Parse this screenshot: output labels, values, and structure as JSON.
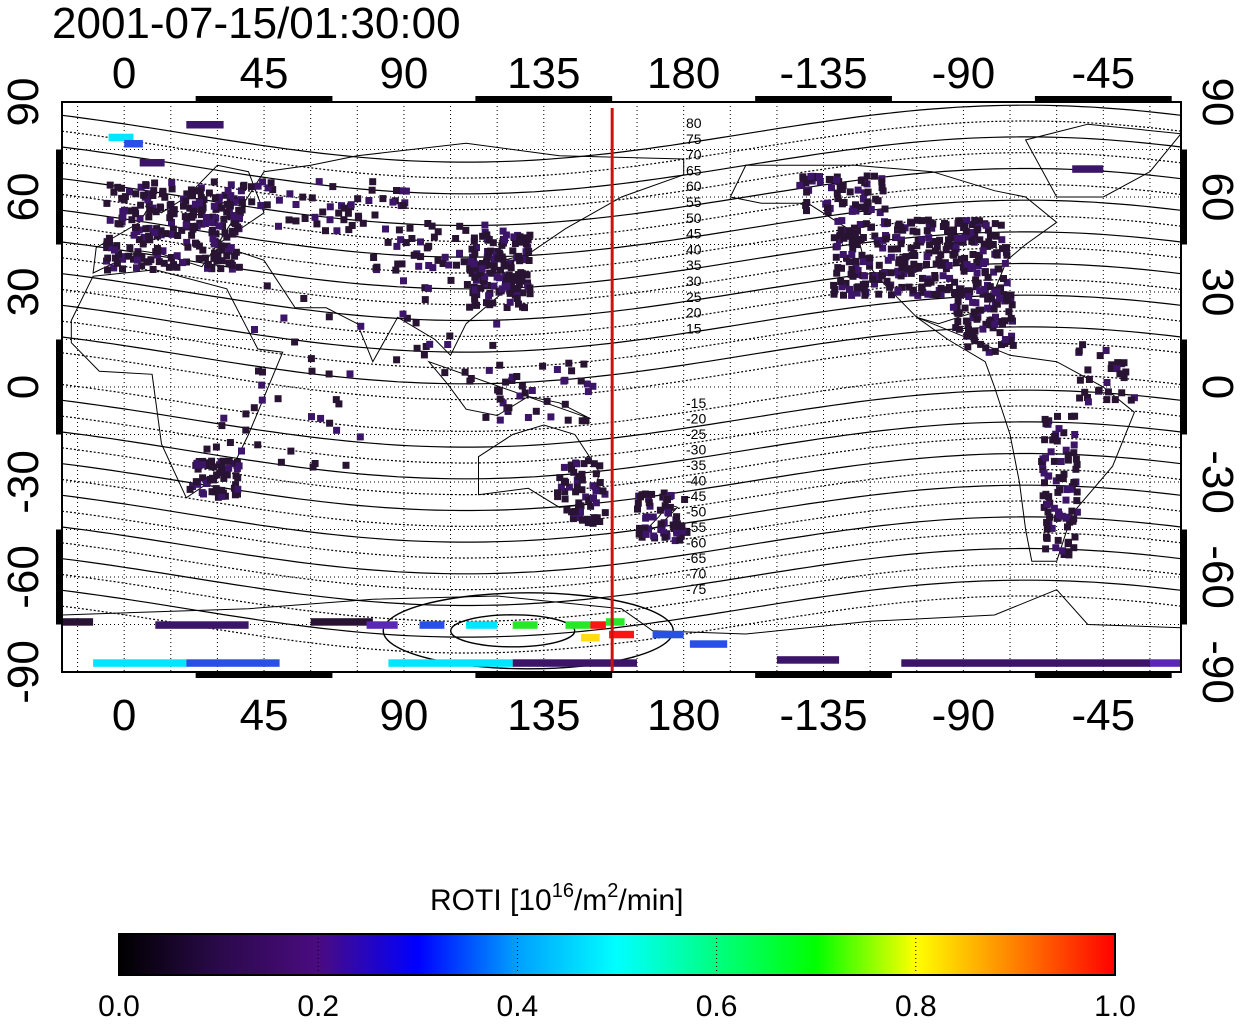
{
  "timestamp": "2001-07-15/01:30:00",
  "map": {
    "lon_ticks": [
      "0",
      "45",
      "90",
      "135",
      "180",
      "-135",
      "-90",
      "-45"
    ],
    "lat_ticks": [
      "90",
      "60",
      "30",
      "0",
      "-30",
      "-60",
      "-90"
    ],
    "contour_labels_north": [
      "80",
      "75",
      "70",
      "65",
      "60",
      "55",
      "50",
      "45",
      "40",
      "35",
      "30",
      "25",
      "20",
      "15"
    ],
    "contour_labels_south": [
      "-15",
      "-20",
      "-25",
      "-30",
      "-35",
      "-40",
      "-45",
      "-50",
      "-55",
      "-60",
      "-65",
      "-70",
      "-75"
    ],
    "marker_longitude": 157,
    "marker_color": "#d01010",
    "lon_range": [
      -20,
      340
    ],
    "lat_range": [
      -90,
      90
    ]
  },
  "colorbar": {
    "title_prefix": "ROTI  [10",
    "title_sup1": "16",
    "title_mid": "/m",
    "title_sup2": "2",
    "title_suffix": "/min]",
    "tick_labels": [
      "0.0",
      "0.2",
      "0.4",
      "0.6",
      "0.8",
      "1.0"
    ],
    "range": [
      0.0,
      1.0
    ],
    "stops": [
      "#000000",
      "#2a0a4a",
      "#4a0b80",
      "#0000ff",
      "#00a0ff",
      "#00ffff",
      "#00ff80",
      "#00ff00",
      "#ffff00",
      "#ff8000",
      "#ff0000"
    ]
  },
  "colors": {
    "dark": "#281432",
    "purple": "#3c1468",
    "violet": "#5a28b4",
    "blue": "#2850e6",
    "cyan": "#00e6ff",
    "green": "#28e628",
    "yellow": "#ffdc14",
    "red": "#ff1414"
  }
}
